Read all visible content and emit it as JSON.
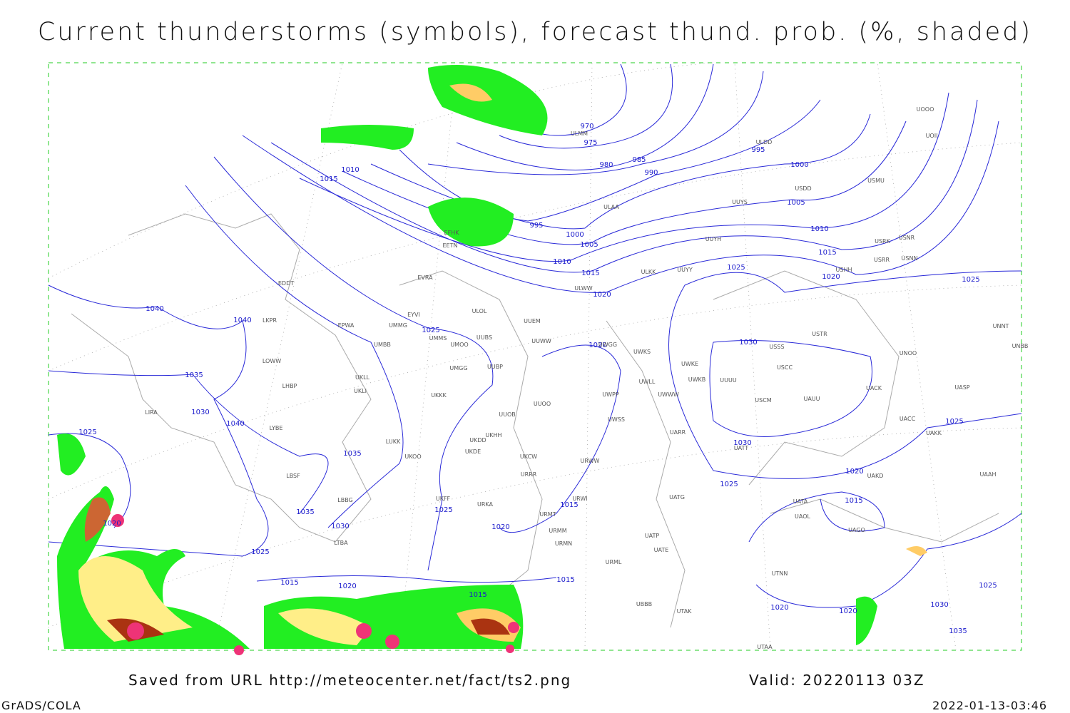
{
  "header": {
    "title": "Current thunderstorms (symbols), forecast thund. prob. (%, shaded)"
  },
  "map": {
    "isobar_labels": [
      970,
      975,
      980,
      985,
      990,
      995,
      1000,
      1005,
      1010,
      1015,
      1020,
      1025,
      1025,
      1010,
      1015,
      995,
      1000,
      1005,
      1010,
      1015,
      1020,
      1025,
      1040,
      1040,
      1035,
      1030,
      1040,
      1025,
      1035,
      1035,
      1030,
      1025,
      1025,
      1020,
      1030,
      1030,
      1025,
      1025,
      1020,
      1015,
      1015,
      1020,
      1020,
      1015,
      1020,
      1015,
      1015,
      1020,
      1020,
      1030,
      1025,
      1035
    ],
    "stations": [
      "ULMM",
      "ULDD",
      "UOOO",
      "UOII",
      "USDD",
      "USMU",
      "ULAA",
      "UUYS",
      "USRK",
      "USNR",
      "USHH",
      "USRR",
      "USNN",
      "UUYY",
      "ULKK",
      "UUYH",
      "ULWW",
      "ULOL",
      "UUEM",
      "EYVI",
      "UMMG",
      "EPWA",
      "UMMS",
      "UMOO",
      "UUBS",
      "UUWW",
      "UMBB",
      "UKLL",
      "UKLI",
      "UMGG",
      "UUBP",
      "UKKK",
      "UUOO",
      "UUOB",
      "UKHH",
      "UKDD",
      "UKDE",
      "UKFF",
      "URKA",
      "URRR",
      "UKCW",
      "URWW",
      "URWI",
      "URMT",
      "URMM",
      "URMN",
      "UWPP",
      "UWKS",
      "UWKE",
      "UWKB",
      "UWLL",
      "UWWW",
      "UWSS",
      "UWGG",
      "UARR",
      "UUUU",
      "USCC",
      "USSS",
      "USTR",
      "USCM",
      "UAUU",
      "UATT",
      "UAKK",
      "UACC",
      "UASP",
      "UACK",
      "UNOO",
      "UNNT",
      "UNBB",
      "UAAH",
      "UAKD",
      "UATA",
      "UAOL",
      "UAGO",
      "UATG",
      "UATE",
      "UATP",
      "URML",
      "UTAK",
      "UBBB",
      "UTNN",
      "UTAA",
      "LKPR",
      "LOWW",
      "LHBP",
      "LIRA",
      "LYBE",
      "LBSF",
      "LBBG",
      "LTBA",
      "LUKK",
      "UKOO",
      "EVRA",
      "EETN",
      "EFHK",
      "EDDT"
    ]
  },
  "footer": {
    "source": "Saved from URL http://meteocenter.net/fact/ts2.png",
    "valid": "Valid: 20220113 03Z",
    "software": "GrADS/COLA",
    "timestamp": "2022-01-13-03:46"
  }
}
